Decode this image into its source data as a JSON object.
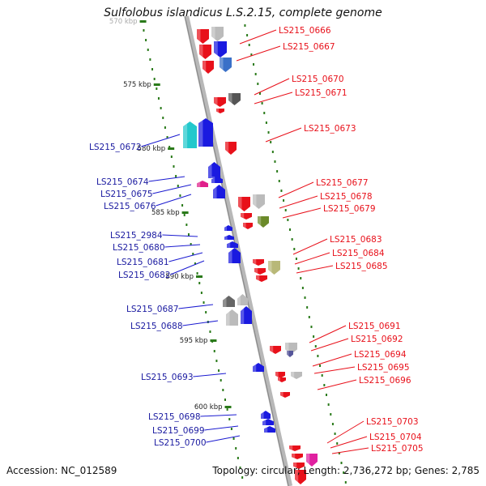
{
  "header": {
    "title": "Sulfolobus islandicus L.S.2.15, complete genome"
  },
  "footer": {
    "accession": "Accession: NC_012589",
    "summary": "Topology: circular; Length: 2,736,272 bp; Genes: 2,785"
  },
  "ticks": [
    {
      "label": "570 kbp"
    },
    {
      "label": "575 kbp"
    },
    {
      "label": "580 kbp"
    },
    {
      "label": "585 kbp"
    },
    {
      "label": "590 kbp"
    },
    {
      "label": "595 kbp"
    },
    {
      "label": "600 kbp"
    }
  ],
  "genes": [
    {
      "id": "LS215_0666",
      "strand": "forward",
      "color": "#e8101a"
    },
    {
      "id": "LS215_0667",
      "strand": "forward",
      "color": "#1a1ae0"
    },
    {
      "id": "LS215_0670",
      "strand": "forward",
      "color": "#e8101a"
    },
    {
      "id": "LS215_0671",
      "strand": "forward",
      "color": "#555555"
    },
    {
      "id": "LS215_0672",
      "strand": "reverse",
      "color": "#22c8cc"
    },
    {
      "id": "LS215_0673",
      "strand": "forward",
      "color": "#e8101a"
    },
    {
      "id": "LS215_0674",
      "strand": "reverse",
      "color": "#1a1ae0"
    },
    {
      "id": "LS215_0675",
      "strand": "reverse",
      "color": "#e0208a"
    },
    {
      "id": "LS215_0676",
      "strand": "reverse",
      "color": "#1a1ae0"
    },
    {
      "id": "LS215_0677",
      "strand": "forward",
      "color": "#e8101a"
    },
    {
      "id": "LS215_0678",
      "strand": "forward",
      "color": "#bbbbbb"
    },
    {
      "id": "LS215_0679",
      "strand": "forward",
      "color": "#6b8a2a"
    },
    {
      "id": "LS215_2984",
      "strand": "reverse",
      "color": "#1a1ae0"
    },
    {
      "id": "LS215_0680",
      "strand": "reverse",
      "color": "#1a1ae0"
    },
    {
      "id": "LS215_0681",
      "strand": "reverse",
      "color": "#1a1ae0"
    },
    {
      "id": "LS215_0682",
      "strand": "reverse",
      "color": "#1a1ae0"
    },
    {
      "id": "LS215_0683",
      "strand": "forward",
      "color": "#e8101a"
    },
    {
      "id": "LS215_0684",
      "strand": "forward",
      "color": "#b8b878"
    },
    {
      "id": "LS215_0685",
      "strand": "forward",
      "color": "#e8101a"
    },
    {
      "id": "LS215_0687",
      "strand": "reverse",
      "color": "#666666"
    },
    {
      "id": "LS215_0688",
      "strand": "reverse",
      "color": "#bbbbbb"
    },
    {
      "id": "LS215_0691",
      "strand": "forward",
      "color": "#bbbbbb"
    },
    {
      "id": "LS215_0692",
      "strand": "forward",
      "color": "#55559a"
    },
    {
      "id": "LS215_0693",
      "strand": "reverse",
      "color": "#1a1ae0"
    },
    {
      "id": "LS215_0694",
      "strand": "forward",
      "color": "#e8101a"
    },
    {
      "id": "LS215_0695",
      "strand": "forward",
      "color": "#e8101a"
    },
    {
      "id": "LS215_0696",
      "strand": "forward",
      "color": "#e8101a"
    },
    {
      "id": "LS215_0698",
      "strand": "reverse",
      "color": "#1a1ae0"
    },
    {
      "id": "LS215_0699",
      "strand": "reverse",
      "color": "#1a1ae0"
    },
    {
      "id": "LS215_0700",
      "strand": "reverse",
      "color": "#1a1ae0"
    },
    {
      "id": "LS215_0703",
      "strand": "forward",
      "color": "#e8101a"
    },
    {
      "id": "LS215_0704",
      "strand": "forward",
      "color": "#e8101a"
    },
    {
      "id": "LS215_0705",
      "strand": "forward",
      "color": "#e020a0"
    }
  ],
  "colors": {
    "forward_label": "#e8101a",
    "reverse_label": "#1a1aa0",
    "backbone": "#999999",
    "tick": "#2a7a1a"
  }
}
